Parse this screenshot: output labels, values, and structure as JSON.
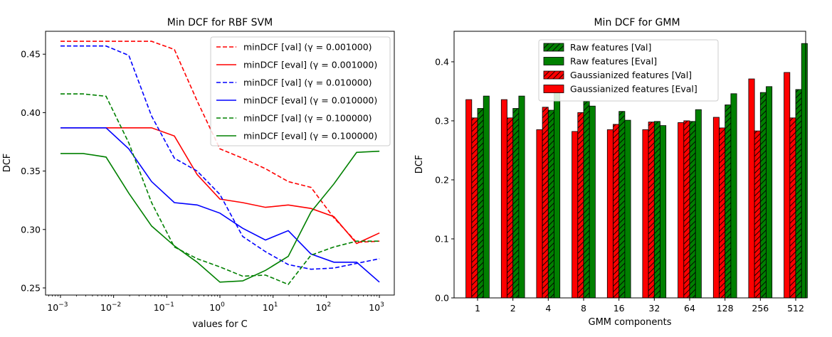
{
  "chart_data": [
    {
      "type": "line",
      "title": "Min DCF for RBF SVM",
      "xlabel": "values for C",
      "ylabel": "DCF",
      "xscale": "log",
      "xlim": [
        0.000524,
        1907
      ],
      "ylim": [
        0.2439,
        0.4696
      ],
      "xticks": [
        {
          "value": 0.001,
          "base": "10",
          "exp": "−3"
        },
        {
          "value": 0.01,
          "base": "10",
          "exp": "−2"
        },
        {
          "value": 0.1,
          "base": "10",
          "exp": "−1"
        },
        {
          "value": 1,
          "base": "10",
          "exp": "0"
        },
        {
          "value": 10,
          "base": "10",
          "exp": "1"
        },
        {
          "value": 100,
          "base": "10",
          "exp": "2"
        },
        {
          "value": 1000,
          "base": "10",
          "exp": "3"
        }
      ],
      "yticks": [
        {
          "value": 0.25,
          "label": "0.25"
        },
        {
          "value": 0.3,
          "label": "0.30"
        },
        {
          "value": 0.35,
          "label": "0.35"
        },
        {
          "value": 0.4,
          "label": "0.40"
        },
        {
          "value": 0.45,
          "label": "0.45"
        }
      ],
      "legend_position": "top-right",
      "x": [
        0.001,
        0.00268,
        0.0072,
        0.0193,
        0.0518,
        0.139,
        0.373,
        1.0,
        2.68,
        7.2,
        19.3,
        51.8,
        139,
        373,
        1000
      ],
      "series": [
        {
          "name": "minDCF [val] (γ = 0.001000)",
          "color": "#ff0000",
          "dash": true,
          "values": [
            0.461,
            0.461,
            0.461,
            0.461,
            0.461,
            0.454,
            0.41,
            0.369,
            0.361,
            0.352,
            0.341,
            0.336,
            0.31,
            0.289,
            0.29
          ]
        },
        {
          "name": "minDCF [eval] (γ = 0.001000)",
          "color": "#ff0000",
          "dash": false,
          "values": [
            0.387,
            0.387,
            0.387,
            0.387,
            0.387,
            0.38,
            0.347,
            0.326,
            0.323,
            0.319,
            0.321,
            0.318,
            0.311,
            0.288,
            0.297
          ]
        },
        {
          "name": "minDCF [val] (γ = 0.010000)",
          "color": "#0000ff",
          "dash": true,
          "values": [
            0.457,
            0.457,
            0.457,
            0.449,
            0.397,
            0.361,
            0.35,
            0.33,
            0.294,
            0.281,
            0.27,
            0.266,
            0.267,
            0.271,
            0.275
          ]
        },
        {
          "name": "minDCF [eval] (γ = 0.010000)",
          "color": "#0000ff",
          "dash": false,
          "values": [
            0.387,
            0.387,
            0.387,
            0.369,
            0.341,
            0.323,
            0.321,
            0.314,
            0.301,
            0.291,
            0.299,
            0.279,
            0.272,
            0.272,
            0.255
          ]
        },
        {
          "name": "minDCF [val] (γ = 0.100000)",
          "color": "#008000",
          "dash": true,
          "values": [
            0.416,
            0.416,
            0.414,
            0.374,
            0.323,
            0.285,
            0.275,
            0.268,
            0.26,
            0.261,
            0.253,
            0.278,
            0.285,
            0.29,
            0.29
          ]
        },
        {
          "name": "minDCF [eval] (γ = 0.100000)",
          "color": "#008000",
          "dash": false,
          "values": [
            0.365,
            0.365,
            0.362,
            0.331,
            0.303,
            0.286,
            0.272,
            0.255,
            0.256,
            0.265,
            0.277,
            0.315,
            0.339,
            0.366,
            0.367
          ]
        }
      ]
    },
    {
      "type": "bar",
      "title": "Min DCF for GMM",
      "xlabel": "GMM components",
      "ylabel": "DCF",
      "ylim": [
        0,
        0.4517
      ],
      "yticks": [
        {
          "value": 0.0,
          "label": "0.0"
        },
        {
          "value": 0.1,
          "label": "0.1"
        },
        {
          "value": 0.2,
          "label": "0.2"
        },
        {
          "value": 0.3,
          "label": "0.3"
        },
        {
          "value": 0.4,
          "label": "0.4"
        }
      ],
      "legend_position": "top-center",
      "categories": [
        "1",
        "2",
        "4",
        "8",
        "16",
        "32",
        "64",
        "128",
        "256",
        "512"
      ],
      "series": [
        {
          "name": "Gaussianized features [Eval]",
          "color": "#ff0000",
          "hatch": false,
          "values": [
            0.336,
            0.336,
            0.285,
            0.282,
            0.285,
            0.285,
            0.297,
            0.306,
            0.371,
            0.382
          ]
        },
        {
          "name": "Gaussianized features [Val]",
          "color": "#ff0000",
          "hatch": true,
          "values": [
            0.305,
            0.305,
            0.323,
            0.314,
            0.294,
            0.298,
            0.3,
            0.288,
            0.283,
            0.305
          ]
        },
        {
          "name": "Raw features [Val]",
          "color": "#008000",
          "hatch": true,
          "values": [
            0.321,
            0.321,
            0.318,
            0.333,
            0.316,
            0.299,
            0.299,
            0.327,
            0.348,
            0.353
          ]
        },
        {
          "name": "Raw features [Eval]",
          "color": "#008000",
          "hatch": false,
          "values": [
            0.342,
            0.342,
            0.357,
            0.325,
            0.301,
            0.292,
            0.319,
            0.346,
            0.358,
            0.431
          ]
        }
      ],
      "legend_order": [
        2,
        3,
        1,
        0
      ]
    }
  ]
}
